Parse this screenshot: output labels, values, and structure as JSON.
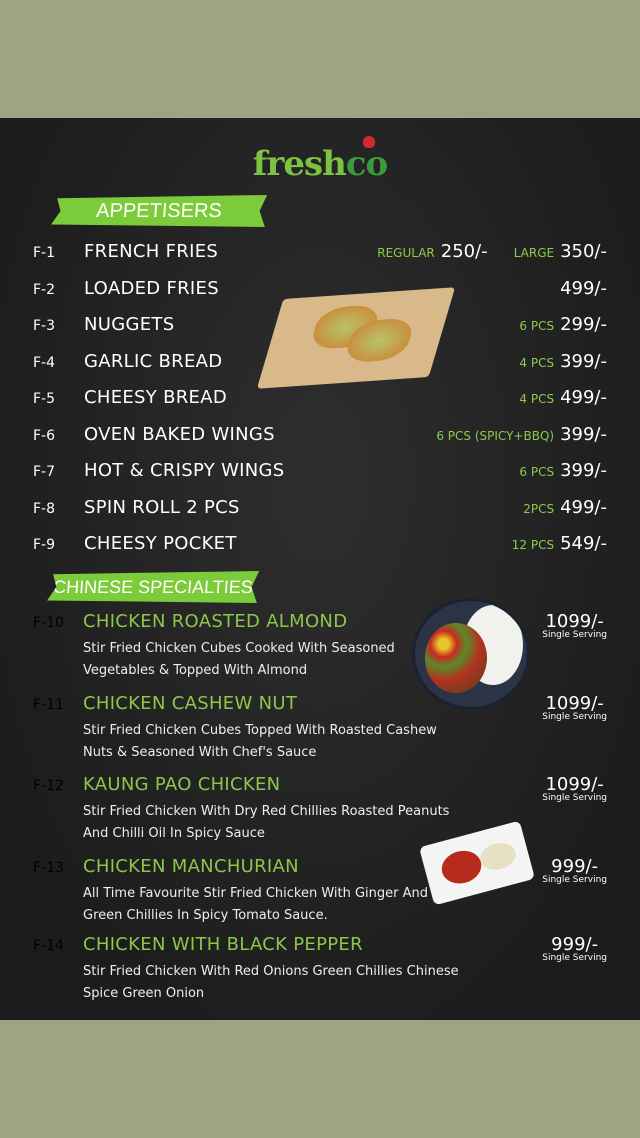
{
  "brand": {
    "logo_part1": "fresh",
    "logo_part2": "co",
    "colors": {
      "accent_green": "#7ccb3a",
      "title_green": "#8cc64a",
      "background_band": "#9fa384",
      "board": "#222222"
    }
  },
  "appetisers": {
    "heading": "APPETISERS",
    "items": [
      {
        "code": "F-1",
        "name": "FRENCH FRIES",
        "options": [
          {
            "qualifier": "REGULAR",
            "price": "250/-"
          },
          {
            "qualifier": "LARGE",
            "price": "350/-"
          }
        ]
      },
      {
        "code": "F-2",
        "name": "LOADED FRIES",
        "options": [
          {
            "qualifier": "",
            "price": "499/-"
          }
        ]
      },
      {
        "code": "F-3",
        "name": "NUGGETS",
        "options": [
          {
            "qualifier": "6 PCS",
            "price": "299/-"
          }
        ]
      },
      {
        "code": "F-4",
        "name": "GARLIC BREAD",
        "options": [
          {
            "qualifier": "4 PCS",
            "price": "399/-"
          }
        ]
      },
      {
        "code": "F-5",
        "name": "CHEESY BREAD",
        "options": [
          {
            "qualifier": "4 PCS",
            "price": "499/-"
          }
        ]
      },
      {
        "code": "F-6",
        "name": "OVEN BAKED WINGS",
        "options": [
          {
            "qualifier": "6 PCS (SPICY+BBQ)",
            "price": "399/-"
          }
        ]
      },
      {
        "code": "F-7",
        "name": "HOT & CRISPY WINGS",
        "options": [
          {
            "qualifier": "6 PCS",
            "price": "399/-"
          }
        ]
      },
      {
        "code": "F-8",
        "name": "SPIN ROLL 2 PCS",
        "options": [
          {
            "qualifier": "2PCS",
            "price": "499/-"
          }
        ]
      },
      {
        "code": "F-9",
        "name": "CHEESY POCKET",
        "options": [
          {
            "qualifier": "12 PCS",
            "price": "549/-"
          }
        ]
      }
    ]
  },
  "chinese": {
    "heading": "CHINESE SPECIALTIES",
    "items": [
      {
        "code": "F-10",
        "name": "CHICKEN ROASTED ALMOND",
        "desc": "Stir Fried Chicken Cubes Cooked With Seasoned Vegetables & Topped With Almond",
        "price": "1099/-",
        "serving": "Single Serving"
      },
      {
        "code": "F-11",
        "name": "CHICKEN CASHEW NUT",
        "desc": "Stir Fried Chicken Cubes Topped With Roasted Cashew Nuts & Seasoned With Chef's Sauce",
        "price": "1099/-",
        "serving": "Single Serving"
      },
      {
        "code": "F-12",
        "name": "KAUNG PAO CHICKEN",
        "desc": "Stir Fried Chicken With Dry Red Chillies Roasted Peanuts And Chilli Oil In Spicy Sauce",
        "price": "1099/-",
        "serving": "Single Serving"
      },
      {
        "code": "F-13",
        "name": "CHICKEN MANCHURIAN",
        "desc": "All Time Favourite Stir Fried Chicken With Ginger And Green Chillies In Spicy Tomato Sauce.",
        "price": "999/-",
        "serving": "Single Serving"
      },
      {
        "code": "F-14",
        "name": "CHICKEN WITH BLACK PEPPER",
        "desc": "Stir Fried Chicken With Red Onions Green Chillies Chinese Spice Green Onion",
        "price": "999/-",
        "serving": "Single Serving"
      }
    ]
  }
}
